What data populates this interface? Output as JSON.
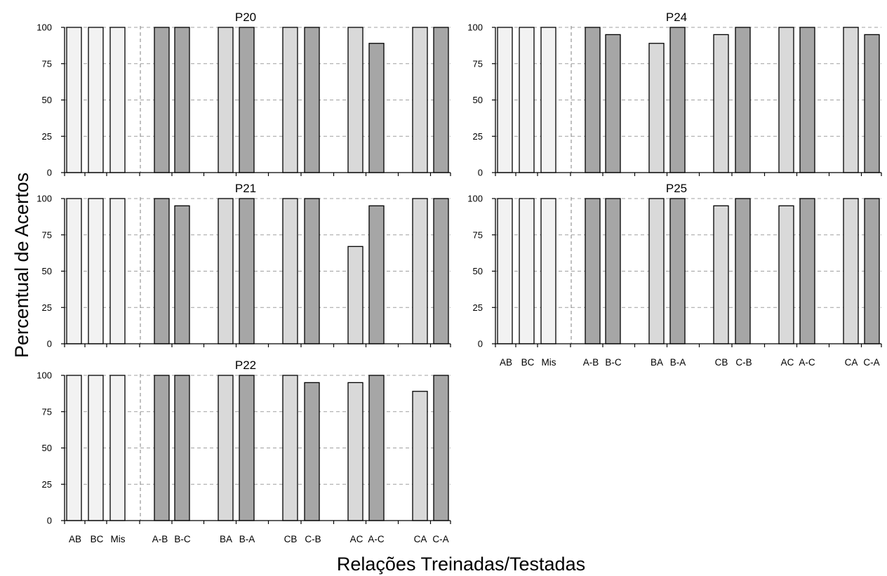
{
  "figure": {
    "ylabel": "Percentual de Acertos",
    "xlabel": "Relações Treinadas/Testadas"
  },
  "chart_data": [
    {
      "type": "bar",
      "title": "P20",
      "categories": [
        "AB",
        "BC",
        "Mis",
        "A-B",
        "B-C",
        "BA",
        "B-A",
        "CB",
        "C-B",
        "AC",
        "A-C",
        "CA",
        "C-A"
      ],
      "values": [
        100,
        100,
        100,
        100,
        100,
        100,
        100,
        100,
        100,
        100,
        89,
        100,
        100
      ],
      "bar_colors": [
        "#f2f2f2",
        "#f2f2f2",
        "#f2f2f2",
        "#a6a6a6",
        "#a6a6a6",
        "#d9d9d9",
        "#a6a6a6",
        "#d9d9d9",
        "#a6a6a6",
        "#d9d9d9",
        "#a6a6a6",
        "#d9d9d9",
        "#a6a6a6"
      ],
      "ylim": [
        0,
        100
      ],
      "yticks": [
        0,
        25,
        50,
        75,
        100
      ],
      "grid": "horizontal dashed",
      "show_x_labels": false
    },
    {
      "type": "bar",
      "title": "P24",
      "categories": [
        "AB",
        "BC",
        "Mis",
        "A-B",
        "B-C",
        "BA",
        "B-A",
        "CB",
        "C-B",
        "AC",
        "A-C",
        "CA",
        "C-A"
      ],
      "values": [
        100,
        100,
        100,
        100,
        95,
        89,
        100,
        95,
        100,
        100,
        100,
        100,
        95
      ],
      "bar_colors": [
        "#f2f2f2",
        "#f2f2f2",
        "#f2f2f2",
        "#a6a6a6",
        "#a6a6a6",
        "#d9d9d9",
        "#a6a6a6",
        "#d9d9d9",
        "#a6a6a6",
        "#d9d9d9",
        "#a6a6a6",
        "#d9d9d9",
        "#a6a6a6"
      ],
      "ylim": [
        0,
        100
      ],
      "yticks": [
        0,
        25,
        50,
        75,
        100
      ],
      "grid": "horizontal dashed",
      "show_x_labels": false
    },
    {
      "type": "bar",
      "title": "P21",
      "categories": [
        "AB",
        "BC",
        "Mis",
        "A-B",
        "B-C",
        "BA",
        "B-A",
        "CB",
        "C-B",
        "AC",
        "A-C",
        "CA",
        "C-A"
      ],
      "values": [
        100,
        100,
        100,
        100,
        95,
        100,
        100,
        100,
        100,
        67,
        95,
        100,
        100
      ],
      "bar_colors": [
        "#f2f2f2",
        "#f2f2f2",
        "#f2f2f2",
        "#a6a6a6",
        "#a6a6a6",
        "#d9d9d9",
        "#a6a6a6",
        "#d9d9d9",
        "#a6a6a6",
        "#d9d9d9",
        "#a6a6a6",
        "#d9d9d9",
        "#a6a6a6"
      ],
      "ylim": [
        0,
        100
      ],
      "yticks": [
        0,
        25,
        50,
        75,
        100
      ],
      "grid": "horizontal dashed",
      "show_x_labels": false
    },
    {
      "type": "bar",
      "title": "P25",
      "categories": [
        "AB",
        "BC",
        "Mis",
        "A-B",
        "B-C",
        "BA",
        "B-A",
        "CB",
        "C-B",
        "AC",
        "A-C",
        "CA",
        "C-A"
      ],
      "values": [
        100,
        100,
        100,
        100,
        100,
        100,
        100,
        95,
        100,
        95,
        100,
        100,
        100
      ],
      "bar_colors": [
        "#f2f2f2",
        "#f2f2f2",
        "#f2f2f2",
        "#a6a6a6",
        "#a6a6a6",
        "#d9d9d9",
        "#a6a6a6",
        "#d9d9d9",
        "#a6a6a6",
        "#d9d9d9",
        "#a6a6a6",
        "#d9d9d9",
        "#a6a6a6"
      ],
      "ylim": [
        0,
        100
      ],
      "yticks": [
        0,
        25,
        50,
        75,
        100
      ],
      "grid": "horizontal dashed",
      "show_x_labels": true
    },
    {
      "type": "bar",
      "title": "P22",
      "categories": [
        "AB",
        "BC",
        "Mis",
        "A-B",
        "B-C",
        "BA",
        "B-A",
        "CB",
        "C-B",
        "AC",
        "A-C",
        "CA",
        "C-A"
      ],
      "values": [
        100,
        100,
        100,
        100,
        100,
        100,
        100,
        100,
        95,
        95,
        100,
        89,
        100
      ],
      "bar_colors": [
        "#f2f2f2",
        "#f2f2f2",
        "#f2f2f2",
        "#a6a6a6",
        "#a6a6a6",
        "#d9d9d9",
        "#a6a6a6",
        "#d9d9d9",
        "#a6a6a6",
        "#d9d9d9",
        "#a6a6a6",
        "#d9d9d9",
        "#a6a6a6"
      ],
      "ylim": [
        0,
        100
      ],
      "yticks": [
        0,
        25,
        50,
        75,
        100
      ],
      "grid": "horizontal dashed",
      "show_x_labels": true
    }
  ]
}
